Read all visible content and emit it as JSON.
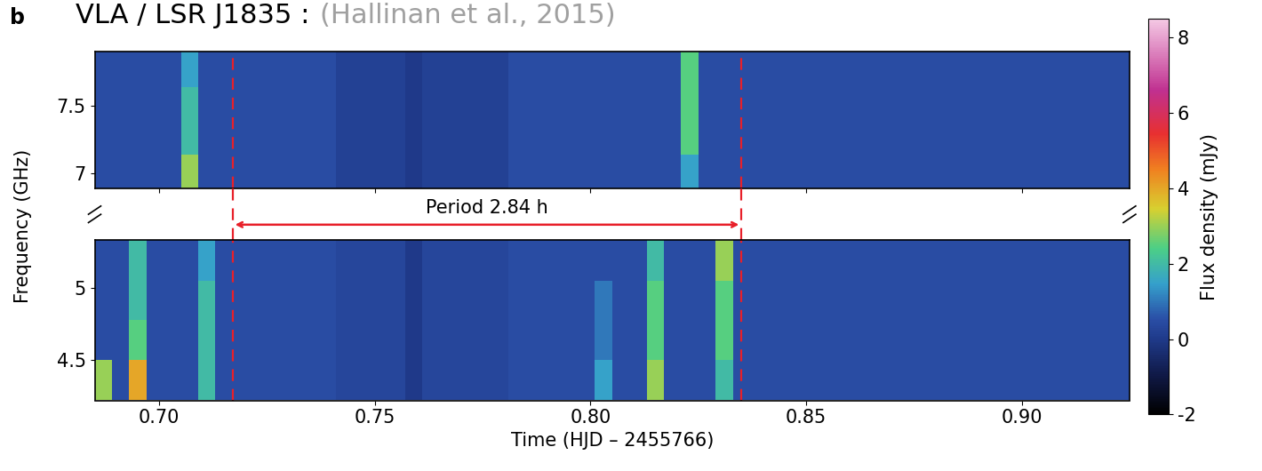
{
  "chart_data": {
    "type": "heatmap",
    "title": "VLA / LSR J1835 :",
    "citation": "(Hallinan et al., 2015)",
    "panel_label": "b",
    "xlabel": "Time (HJD – 2455766)",
    "ylabel": "Frequency (GHz)",
    "xlim": [
      0.685,
      0.925
    ],
    "xticks": [
      {
        "value": 0.7,
        "label": "0.70"
      },
      0.75,
      {
        "value": 0.8,
        "label": "0.80"
      },
      0.85,
      {
        "value": 0.9,
        "label": "0.90"
      }
    ],
    "time_edges": [
      0.685,
      0.689,
      0.693,
      0.697,
      0.701,
      0.705,
      0.709,
      0.713,
      0.717,
      0.721,
      0.725,
      0.729,
      0.733,
      0.737,
      0.741,
      0.745,
      0.749,
      0.753,
      0.757,
      0.761,
      0.765,
      0.769,
      0.773,
      0.777,
      0.781,
      0.785,
      0.789,
      0.793,
      0.797,
      0.801,
      0.805,
      0.809,
      0.813,
      0.817,
      0.821,
      0.825,
      0.829,
      0.833,
      0.837,
      0.841,
      0.845,
      0.849,
      0.853,
      0.857,
      0.861,
      0.865,
      0.869,
      0.873,
      0.877,
      0.881,
      0.885,
      0.889,
      0.893,
      0.897,
      0.901,
      0.905,
      0.909,
      0.913,
      0.917,
      0.921,
      0.925
    ],
    "bands": [
      {
        "ylim": [
          6.89,
          7.9
        ],
        "yticks": [
          7,
          7.5
        ],
        "freq_edges": [
          6.89,
          7.14,
          7.39,
          7.64,
          7.9
        ],
        "cells": [
          [
            0.5,
            0.5,
            0.5,
            0.5,
            0.5,
            3,
            0.5,
            0.5,
            0.5,
            0.5,
            0.5,
            0.5,
            0.5,
            0.5,
            0.2,
            0.2,
            0.2,
            0.2,
            0,
            0.2,
            0.2,
            0.2,
            0.2,
            0.2,
            0.5,
            0.5,
            0.5,
            0.5,
            0.5,
            0.5,
            0.5,
            0.5,
            0.5,
            0.5,
            1.5,
            0.5,
            0.5,
            0.5,
            0.5,
            0.5,
            0.5,
            0.5,
            0.5,
            0.5,
            0.5,
            0.5,
            0.5,
            0.5,
            0.5,
            0.5,
            0.5,
            0.5,
            0.5,
            0.5,
            0.5,
            0.5,
            0.5,
            0.5,
            0.5,
            0.5
          ],
          [
            0.5,
            0.5,
            0.5,
            0.5,
            0.5,
            2,
            0.5,
            0.5,
            0.5,
            0.5,
            0.5,
            0.5,
            0.5,
            0.5,
            0.2,
            0.2,
            0.2,
            0.2,
            0,
            0.2,
            0.2,
            0.2,
            0.2,
            0.2,
            0.5,
            0.5,
            0.5,
            0.5,
            0.5,
            0.5,
            0.5,
            0.5,
            0.5,
            0.5,
            2.5,
            0.5,
            0.5,
            0.5,
            0.5,
            0.5,
            0.5,
            0.5,
            0.5,
            0.5,
            0.5,
            0.5,
            0.5,
            0.5,
            0.5,
            0.5,
            0.5,
            0.5,
            0.5,
            0.5,
            0.5,
            0.5,
            0.5,
            0.5,
            0.5,
            0.5
          ],
          [
            0.5,
            0.5,
            0.5,
            0.5,
            0.5,
            2,
            0.5,
            0.5,
            0.5,
            0.5,
            0.5,
            0.5,
            0.5,
            0.5,
            0.2,
            0.2,
            0.2,
            0.2,
            0,
            0.2,
            0.2,
            0.2,
            0.2,
            0.2,
            0.5,
            0.5,
            0.5,
            0.5,
            0.5,
            0.5,
            0.5,
            0.5,
            0.5,
            0.5,
            2.5,
            0.5,
            0.5,
            0.5,
            0.5,
            0.5,
            0.5,
            0.5,
            0.5,
            0.5,
            0.5,
            0.5,
            0.5,
            0.5,
            0.5,
            0.5,
            0.5,
            0.5,
            0.5,
            0.5,
            0.5,
            0.5,
            0.5,
            0.5,
            0.5,
            0.5
          ],
          [
            0.5,
            0.5,
            0.5,
            0.5,
            0.5,
            1.5,
            0.5,
            0.5,
            0.5,
            0.5,
            0.5,
            0.5,
            0.5,
            0.5,
            0.2,
            0.2,
            0.2,
            0.2,
            0,
            0.2,
            0.2,
            0.2,
            0.2,
            0.2,
            0.5,
            0.5,
            0.5,
            0.5,
            0.5,
            0.5,
            0.5,
            0.5,
            0.5,
            0.5,
            2.5,
            0.5,
            0.5,
            0.5,
            0.5,
            0.5,
            0.5,
            0.5,
            0.5,
            0.5,
            0.5,
            0.5,
            0.5,
            0.5,
            0.5,
            0.5,
            0.5,
            0.5,
            0.5,
            0.5,
            0.5,
            0.5,
            0.5,
            0.5,
            0.5,
            0.5
          ]
        ]
      },
      {
        "ylim": [
          4.22,
          5.33
        ],
        "yticks": [
          4.5,
          5
        ],
        "freq_edges": [
          4.22,
          4.5,
          4.78,
          5.05,
          5.33
        ],
        "cells": [
          [
            3,
            0.5,
            4,
            0.5,
            0.5,
            0.5,
            2,
            0.5,
            0.5,
            0.5,
            0.5,
            0.5,
            0.5,
            0.5,
            0.3,
            0.3,
            0.3,
            0.3,
            0,
            0.3,
            0.3,
            0.3,
            0.3,
            0.3,
            0.5,
            0.5,
            0.5,
            0.5,
            0.5,
            1.5,
            0.5,
            0.5,
            3,
            0.5,
            0.5,
            0.5,
            2,
            0.5,
            0.5,
            0.5,
            0.5,
            0.5,
            0.5,
            0.5,
            0.5,
            0.5,
            0.5,
            0.5,
            0.5,
            0.5,
            0.5,
            0.5,
            0.5,
            0.5,
            0.5,
            0.5,
            0.5,
            0.5,
            0.5,
            0.5
          ],
          [
            0.5,
            0.5,
            2.5,
            0.5,
            0.5,
            0.5,
            2,
            0.5,
            0.5,
            0.5,
            0.5,
            0.5,
            0.5,
            0.5,
            0.3,
            0.3,
            0.3,
            0.3,
            0,
            0.3,
            0.3,
            0.3,
            0.3,
            0.3,
            0.5,
            0.5,
            0.5,
            0.5,
            0.5,
            1,
            0.5,
            0.5,
            2.5,
            0.5,
            0.5,
            0.5,
            2.5,
            0.5,
            0.5,
            0.5,
            0.5,
            0.5,
            0.5,
            0.5,
            0.5,
            0.5,
            0.5,
            0.5,
            0.5,
            0.5,
            0.5,
            0.5,
            0.5,
            0.5,
            0.5,
            0.5,
            0.5,
            0.5,
            0.5,
            0.5
          ],
          [
            0.5,
            0.5,
            2,
            0.5,
            0.5,
            0.5,
            2,
            0.5,
            0.5,
            0.5,
            0.5,
            0.5,
            0.5,
            0.5,
            0.3,
            0.3,
            0.3,
            0.3,
            0,
            0.3,
            0.3,
            0.3,
            0.3,
            0.3,
            0.5,
            0.5,
            0.5,
            0.5,
            0.5,
            1,
            0.5,
            0.5,
            2.5,
            0.5,
            0.5,
            0.5,
            2.5,
            0.5,
            0.5,
            0.5,
            0.5,
            0.5,
            0.5,
            0.5,
            0.5,
            0.5,
            0.5,
            0.5,
            0.5,
            0.5,
            0.5,
            0.5,
            0.5,
            0.5,
            0.5,
            0.5,
            0.5,
            0.5,
            0.5,
            0.5
          ],
          [
            0.5,
            0.5,
            2,
            0.5,
            0.5,
            0.5,
            1.5,
            0.5,
            0.5,
            0.5,
            0.5,
            0.5,
            0.5,
            0.5,
            0.3,
            0.3,
            0.3,
            0.3,
            0,
            0.3,
            0.3,
            0.3,
            0.3,
            0.3,
            0.5,
            0.5,
            0.5,
            0.5,
            0.5,
            0.5,
            0.5,
            0.5,
            2,
            0.5,
            0.5,
            0.5,
            3,
            0.5,
            0.5,
            0.5,
            0.5,
            0.5,
            0.5,
            0.5,
            0.5,
            0.5,
            0.5,
            0.5,
            0.5,
            0.5,
            0.5,
            0.5,
            0.5,
            0.5,
            0.5,
            0.5,
            0.5,
            0.5,
            0.5,
            0.5
          ]
        ]
      }
    ],
    "colorbar": {
      "label": "Flux density (mJy)",
      "range": [
        -2,
        8.5
      ],
      "ticks": [
        -2,
        0,
        2,
        4,
        6,
        8
      ]
    },
    "annotation": {
      "text": "Period 2.84 h",
      "start": 0.717,
      "end": 0.835,
      "color": "#e8202a"
    }
  }
}
